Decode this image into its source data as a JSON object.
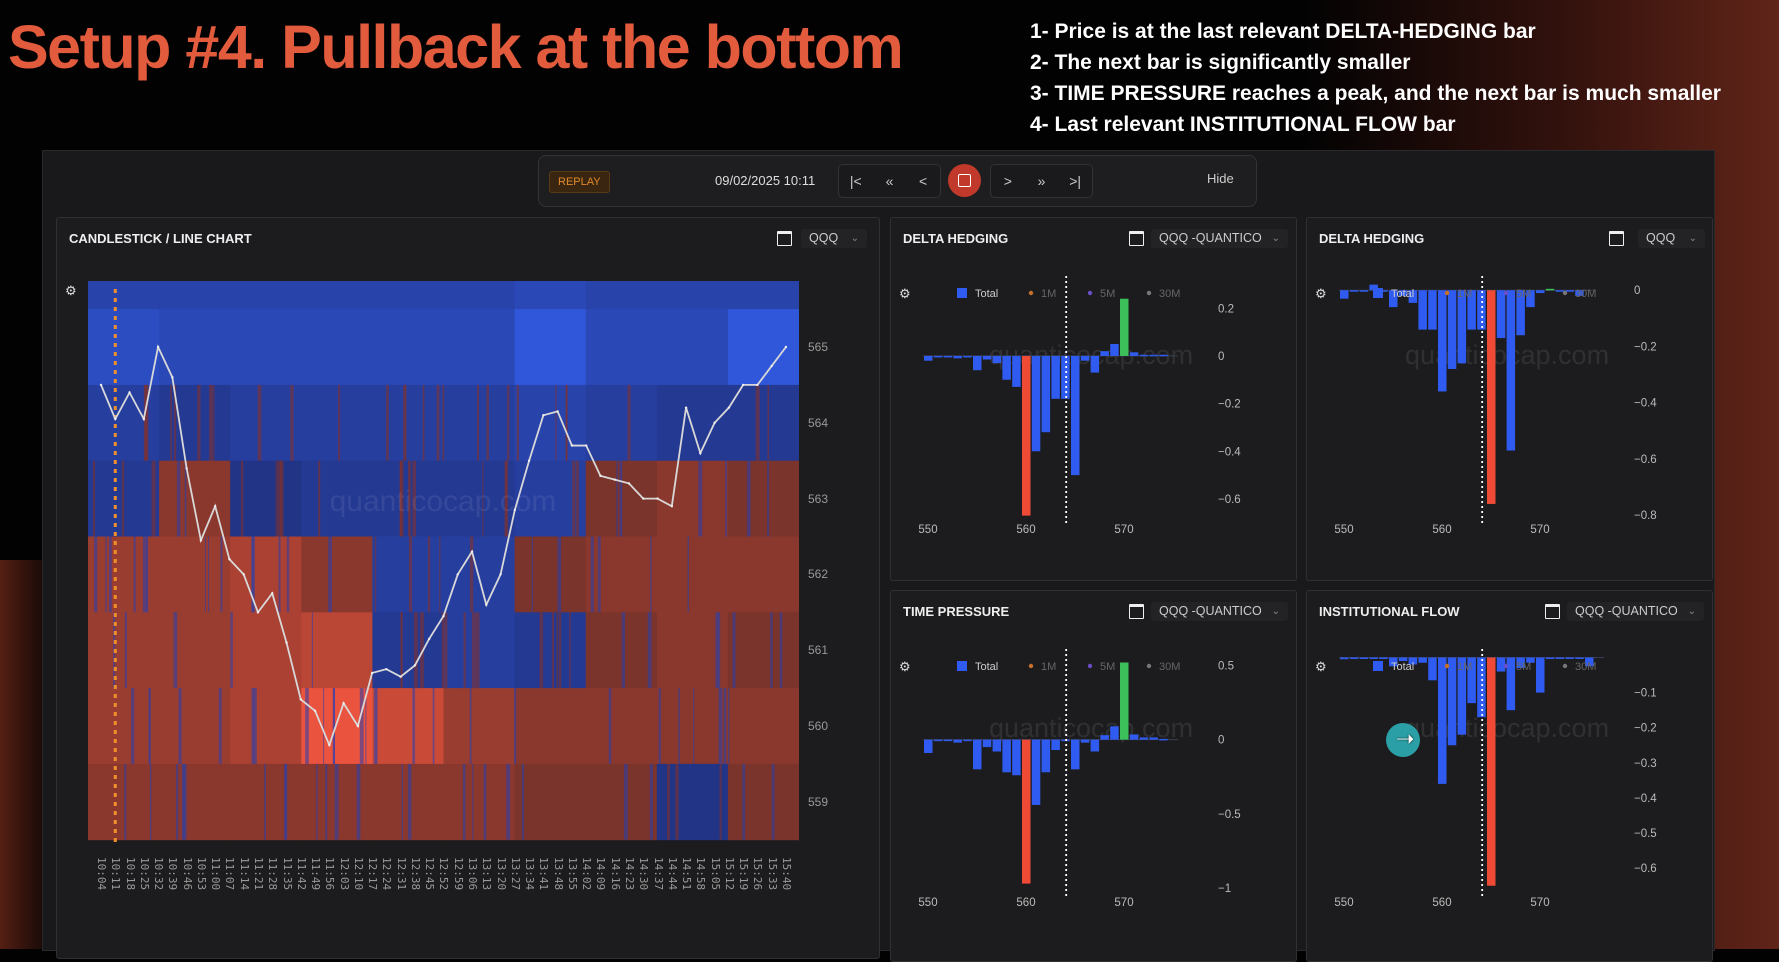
{
  "slide": {
    "title": "Setup #4. Pullback at the bottom",
    "bullets": [
      "1- Price is at the last relevant DELTA-HEDGING bar",
      "2- The next bar is significantly smaller",
      "3- TIME PRESSURE reaches a peak, and the next bar is much smaller",
      "4- Last relevant INSTITUTIONAL FLOW bar"
    ]
  },
  "replay": {
    "badge": "REPLAY",
    "datetime": "09/02/2025 10:11",
    "controls_back": [
      "|<",
      "«",
      "<"
    ],
    "controls_fwd": [
      ">",
      "»",
      ">|"
    ],
    "hide_label": "Hide"
  },
  "main_panel": {
    "title": "CANDLESTICK / LINE CHART",
    "symbol": "QQQ",
    "watermark": "quanticocap.com"
  },
  "legend": [
    "Total",
    "1M",
    "5M",
    "30M"
  ],
  "colors": {
    "bar": "#2f5bf0",
    "red": "#ef4a36",
    "green": "#3cc05a",
    "legend_1m": "#c8702a",
    "legend_5m": "#6a4ec8",
    "legend_30m": "#777777"
  },
  "chart_data": [
    {
      "type": "heatmap",
      "title": "CANDLESTICK / LINE CHART",
      "ylim": [
        558.25,
        565.7
      ],
      "yticks": [
        "565",
        "564",
        "563",
        "562",
        "561",
        "560",
        "559"
      ],
      "ytick_values": [
        565,
        564,
        563,
        562,
        561,
        560,
        559
      ],
      "xticks": [
        "10:04",
        "10:11",
        "10:18",
        "10:25",
        "10:32",
        "10:39",
        "10:46",
        "10:53",
        "11:00",
        "11:07",
        "11:14",
        "11:21",
        "11:28",
        "11:35",
        "11:42",
        "11:49",
        "11:56",
        "12:03",
        "12:10",
        "12:17",
        "12:24",
        "12:31",
        "12:38",
        "12:45",
        "12:52",
        "12:59",
        "13:06",
        "13:13",
        "13:20",
        "13:27",
        "13:34",
        "13:41",
        "13:48",
        "13:55",
        "14:02",
        "14:09",
        "14:16",
        "14:23",
        "14:30",
        "14:37",
        "14:44",
        "14:51",
        "14:58",
        "15:05",
        "15:12",
        "15:19",
        "15:26",
        "15:33",
        "15:40"
      ],
      "replay_marker_time": "10:11",
      "heat_rows": [
        566,
        565,
        564,
        563,
        562,
        561,
        560,
        559
      ],
      "heat_values": [
        [
          0.5,
          0.5,
          0.5,
          0.5,
          0.5,
          0.5,
          0.6,
          0.5,
          0.5,
          0.5
        ],
        [
          0.7,
          0.6,
          0.6,
          0.6,
          0.6,
          0.6,
          0.9,
          0.6,
          0.6,
          0.9
        ],
        [
          0.4,
          0.3,
          0.4,
          0.4,
          0.4,
          0.4,
          0.5,
          0.4,
          0.3,
          0.3
        ],
        [
          0.3,
          -0.4,
          0.2,
          0.3,
          0.3,
          0.3,
          0.4,
          -0.3,
          -0.4,
          -0.3
        ],
        [
          -0.5,
          -0.5,
          -0.6,
          -0.4,
          0.4,
          0.4,
          -0.3,
          -0.4,
          -0.4,
          -0.4
        ],
        [
          -0.5,
          -0.5,
          -0.6,
          -0.7,
          0.3,
          0.4,
          0.3,
          -0.3,
          -0.4,
          -0.3
        ],
        [
          -0.5,
          -0.5,
          -0.6,
          -1,
          -0.8,
          -0.5,
          -0.4,
          -0.4,
          -0.4,
          -0.4
        ],
        [
          -0.4,
          -0.4,
          -0.4,
          -0.4,
          -0.4,
          -0.4,
          -0.3,
          -0.3,
          0.2,
          -0.3
        ]
      ],
      "price": [
        564.5,
        564.05,
        564.4,
        564.05,
        565,
        564.6,
        563.4,
        562.45,
        562.9,
        562.2,
        562,
        561.5,
        561.75,
        561.1,
        560.35,
        560.2,
        559.75,
        560.3,
        560,
        560.7,
        560.75,
        560.65,
        560.8,
        561.15,
        561.45,
        562,
        562.3,
        561.6,
        562,
        562.85,
        563.5,
        564.1,
        564.15,
        563.7,
        563.7,
        563.3,
        563.25,
        563.2,
        563,
        563,
        562.9,
        564.2,
        563.6,
        564,
        564.2,
        564.5,
        564.5,
        564.75,
        565
      ]
    },
    {
      "type": "bar",
      "title": "DELTA HEDGING",
      "symbol": "QQQ -QUANTICO",
      "x": [
        550,
        551,
        552,
        553,
        554,
        555,
        556,
        557,
        558,
        559,
        560,
        561,
        562,
        563,
        564,
        565,
        566,
        567,
        568,
        569,
        570,
        571,
        572,
        573,
        574
      ],
      "values": [
        -0.02,
        -0.003,
        -0.003,
        -0.01,
        -0.003,
        -0.06,
        -0.015,
        -0.03,
        -0.1,
        -0.13,
        -0.67,
        -0.4,
        -0.32,
        -0.18,
        -0.18,
        -0.5,
        -0.02,
        -0.07,
        0.02,
        0.05,
        0.24,
        0.015,
        0.005,
        0.005,
        0.005
      ],
      "highlight_red": 560,
      "highlight_green": 570,
      "marker_x": 564.1,
      "ylim": [
        0.285,
        -0.68
      ],
      "yticks": [
        "0.2",
        "0",
        "−0.2",
        "−0.4",
        "−0.6"
      ],
      "ytick_values": [
        0.2,
        0,
        -0.2,
        -0.4,
        -0.6
      ],
      "xticks": [
        "550",
        "560",
        "570"
      ],
      "xtick_values": [
        550,
        560,
        570
      ]
    },
    {
      "type": "bar",
      "title": "DELTA HEDGING",
      "symbol": "QQQ",
      "x": [
        550,
        551,
        552,
        553,
        554,
        555,
        556,
        557,
        558,
        559,
        560,
        561,
        562,
        563,
        564,
        565,
        566,
        567,
        568,
        569,
        570,
        571,
        572,
        573,
        574
      ],
      "values": [
        -0.03,
        -0.005,
        -0.005,
        0.02,
        -0.003,
        -0.06,
        -0.02,
        -0.045,
        -0.14,
        -0.14,
        -0.36,
        -0.28,
        -0.26,
        -0.14,
        -0.14,
        -0.76,
        -0.17,
        -0.57,
        -0.16,
        -0.06,
        -0.01,
        0.005,
        -0.003,
        -0.003,
        -0.02
      ],
      "highlight_red": 565,
      "highlight_green": 571,
      "marker_x": 564.1,
      "ylim": [
        0.008,
        -0.81
      ],
      "yticks": [
        "0",
        "−0.2",
        "−0.4",
        "−0.6",
        "−0.8"
      ],
      "ytick_values": [
        0,
        -0.2,
        -0.4,
        -0.6,
        -0.8
      ],
      "xticks": [
        "550",
        "560",
        "570"
      ],
      "xtick_values": [
        550,
        560,
        570
      ]
    },
    {
      "type": "bar",
      "title": "TIME PRESSURE",
      "symbol": "QQQ -QUANTICO",
      "x": [
        550,
        551,
        552,
        553,
        554,
        555,
        556,
        557,
        558,
        559,
        560,
        561,
        562,
        563,
        564,
        565,
        566,
        567,
        568,
        569,
        570,
        571,
        572,
        573,
        574
      ],
      "values": [
        -0.09,
        -0.003,
        -0.01,
        -0.02,
        -0.01,
        -0.2,
        -0.05,
        -0.08,
        -0.22,
        -0.24,
        -0.97,
        -0.44,
        -0.22,
        -0.07,
        -0.005,
        -0.2,
        -0.02,
        -0.08,
        0.03,
        0.09,
        0.52,
        0.035,
        0.015,
        0.015,
        0.005
      ],
      "highlight_red": 560,
      "highlight_green": 570,
      "marker_x": 564.1,
      "ylim": [
        0.53,
        -1.02
      ],
      "yticks": [
        "0.5",
        "0",
        "−0.5",
        "−1"
      ],
      "ytick_values": [
        0.5,
        0,
        -0.5,
        -1
      ],
      "xticks": [
        "550",
        "560",
        "570"
      ],
      "xtick_values": [
        550,
        560,
        570
      ]
    },
    {
      "type": "bar",
      "title": "INSTITUTIONAL FLOW",
      "symbol": "QQQ -QUANTICO",
      "x": [
        550,
        551,
        552,
        553,
        554,
        555,
        556,
        557,
        558,
        559,
        560,
        561,
        562,
        563,
        564,
        565,
        566,
        567,
        568,
        569,
        570,
        571,
        572,
        573,
        574,
        575
      ],
      "values": [
        -0.005,
        -0.002,
        -0.002,
        -0.002,
        -0.002,
        -0.025,
        -0.01,
        -0.02,
        -0.015,
        -0.065,
        -0.36,
        -0.25,
        -0.22,
        -0.13,
        -0.17,
        -0.65,
        -0.04,
        -0.15,
        -0.03,
        -0.015,
        -0.1,
        -0.002,
        -0.002,
        -0.002,
        -0.002,
        -0.025
      ],
      "highlight_red": 565,
      "marker_x": 564.1,
      "ylim": [
        -0.01,
        -0.665
      ],
      "yticks": [
        "−0.1",
        "−0.2",
        "−0.3",
        "−0.4",
        "−0.5",
        "−0.6"
      ],
      "ytick_values": [
        -0.1,
        -0.2,
        -0.3,
        -0.4,
        -0.5,
        -0.6
      ],
      "xticks": [
        "550",
        "560",
        "570"
      ],
      "xtick_values": [
        550,
        560,
        570
      ]
    }
  ]
}
